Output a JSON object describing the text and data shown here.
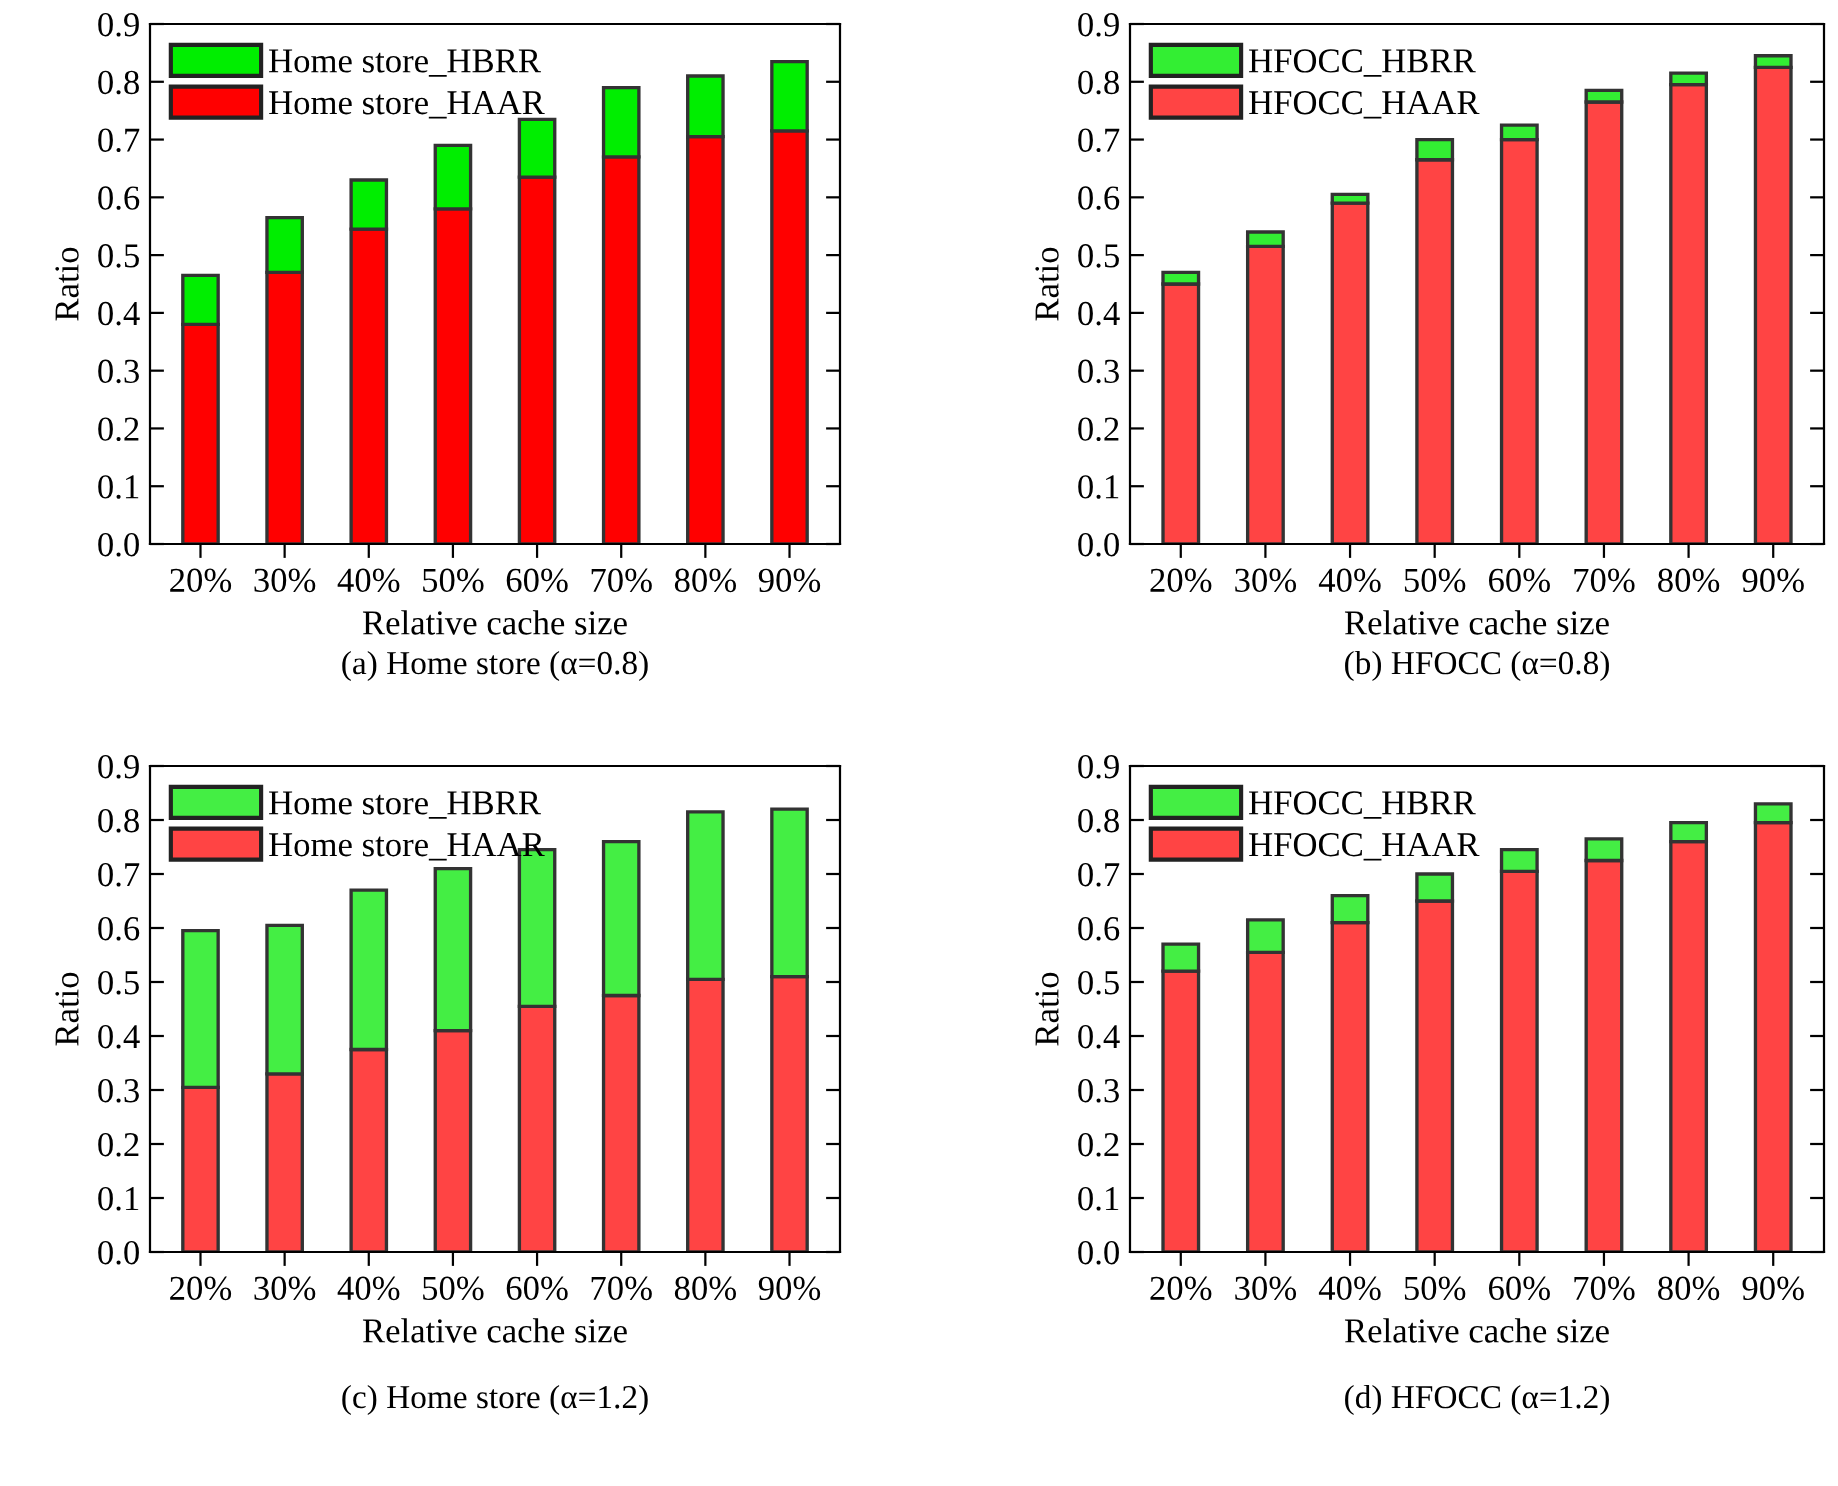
{
  "chart_data": [
    {
      "type": "bar",
      "stacked": true,
      "title": "(a) Home store (α=0.8)",
      "xlabel": "Relative cache size",
      "ylabel": "Ratio",
      "categories": [
        "20%",
        "30%",
        "40%",
        "50%",
        "60%",
        "70%",
        "80%",
        "90%"
      ],
      "series": [
        {
          "name": "Home store_HAAR",
          "color": "#ff0000",
          "values": [
            0.38,
            0.47,
            0.545,
            0.58,
            0.635,
            0.67,
            0.705,
            0.715
          ]
        },
        {
          "name": "Home store_HBRR",
          "color": "#00ee00",
          "values": [
            0.085,
            0.095,
            0.085,
            0.11,
            0.1,
            0.12,
            0.105,
            0.12
          ]
        }
      ],
      "ylim": [
        0,
        0.9
      ],
      "yticks": [
        "0.0",
        0.1,
        0.2,
        0.3,
        0.4,
        0.5,
        0.6,
        0.7,
        0.8,
        0.9
      ],
      "legend": "top left",
      "grid": false
    },
    {
      "type": "bar",
      "stacked": true,
      "title": "(b) HFOCC (α=0.8)",
      "xlabel": "Relative cache size",
      "ylabel": "Ratio",
      "categories": [
        "20%",
        "30%",
        "40%",
        "50%",
        "60%",
        "70%",
        "80%",
        "90%"
      ],
      "series": [
        {
          "name": "HFOCC_HAAR",
          "color": "#ff4444",
          "values": [
            0.45,
            0.515,
            0.59,
            0.665,
            0.7,
            0.765,
            0.795,
            0.825
          ]
        },
        {
          "name": "HFOCC_HBRR",
          "color": "#33ee33",
          "values": [
            0.02,
            0.025,
            0.015,
            0.035,
            0.025,
            0.02,
            0.02,
            0.02
          ]
        }
      ],
      "ylim": [
        0,
        0.9
      ],
      "yticks": [
        "0.0",
        0.1,
        0.2,
        0.3,
        0.4,
        0.5,
        0.6,
        0.7,
        0.8,
        0.9
      ],
      "legend": "top left",
      "grid": false
    },
    {
      "type": "bar",
      "stacked": true,
      "title": "(c) Home store (α=1.2)",
      "xlabel": "Relative cache size",
      "ylabel": "Ratio",
      "categories": [
        "20%",
        "30%",
        "40%",
        "50%",
        "60%",
        "70%",
        "80%",
        "90%"
      ],
      "series": [
        {
          "name": "Home store_HAAR",
          "color": "#ff4444",
          "values": [
            0.305,
            0.33,
            0.375,
            0.41,
            0.455,
            0.475,
            0.505,
            0.51
          ]
        },
        {
          "name": "Home store_HBRR",
          "color": "#44ee44",
          "values": [
            0.29,
            0.275,
            0.295,
            0.3,
            0.29,
            0.285,
            0.31,
            0.31
          ]
        }
      ],
      "ylim": [
        0,
        0.9
      ],
      "yticks": [
        "0.0",
        0.1,
        0.2,
        0.3,
        0.4,
        0.5,
        0.6,
        0.7,
        0.8,
        0.9
      ],
      "legend": "top left",
      "grid": false
    },
    {
      "type": "bar",
      "stacked": true,
      "title": "(d) HFOCC (α=1.2)",
      "xlabel": "Relative cache size",
      "ylabel": "Ratio",
      "categories": [
        "20%",
        "30%",
        "40%",
        "50%",
        "60%",
        "70%",
        "80%",
        "90%"
      ],
      "series": [
        {
          "name": "HFOCC_HAAR",
          "color": "#ff4444",
          "values": [
            0.52,
            0.555,
            0.61,
            0.65,
            0.705,
            0.725,
            0.76,
            0.795
          ]
        },
        {
          "name": "HFOCC_HBRR",
          "color": "#44ee44",
          "values": [
            0.05,
            0.06,
            0.05,
            0.05,
            0.04,
            0.04,
            0.035,
            0.035
          ]
        }
      ],
      "ylim": [
        0,
        0.9
      ],
      "yticks": [
        "0.0",
        0.1,
        0.2,
        0.3,
        0.4,
        0.5,
        0.6,
        0.7,
        0.8,
        0.9
      ],
      "legend": "top left",
      "grid": false
    }
  ]
}
